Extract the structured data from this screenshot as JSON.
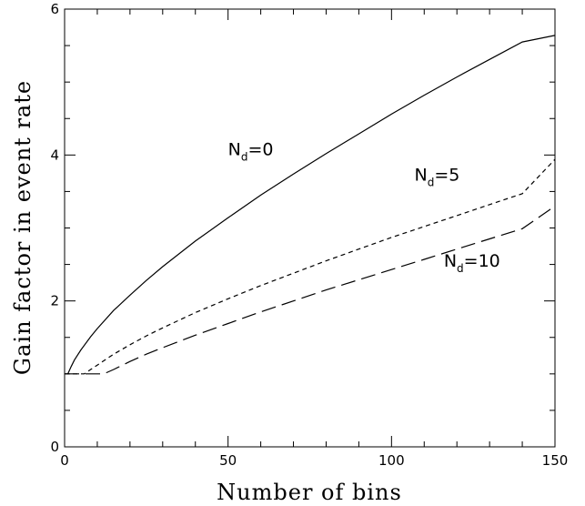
{
  "chart_data": {
    "type": "line",
    "xlabel": "Number of bins",
    "ylabel": "Gain factor in event rate",
    "xlim": [
      0,
      150
    ],
    "ylim": [
      0,
      6
    ],
    "x_ticks": [
      "0",
      "50",
      "100",
      "150"
    ],
    "y_ticks": [
      "0",
      "2",
      "4",
      "6"
    ],
    "grid": false,
    "series": [
      {
        "name": "N_d=0",
        "label_main": "N",
        "label_sub": "d",
        "label_rest": "=0",
        "dash": "solid",
        "x": [
          1,
          2,
          3,
          5,
          8,
          10,
          15,
          20,
          25,
          30,
          40,
          50,
          60,
          70,
          80,
          90,
          100,
          110,
          120,
          130,
          140,
          150
        ],
        "y": [
          1.0,
          1.1,
          1.19,
          1.33,
          1.51,
          1.62,
          1.87,
          2.08,
          2.28,
          2.47,
          2.82,
          3.14,
          3.45,
          3.74,
          4.02,
          4.29,
          4.56,
          4.82,
          5.07,
          5.31,
          5.55,
          5.64
        ]
      },
      {
        "name": "N_d=5",
        "label_main": "N",
        "label_sub": "d",
        "label_rest": "=5",
        "dash": "short",
        "x": [
          0,
          6,
          8,
          10,
          15,
          20,
          25,
          30,
          40,
          50,
          60,
          70,
          80,
          90,
          100,
          110,
          120,
          130,
          140,
          150
        ],
        "y": [
          1.0,
          1.0,
          1.06,
          1.12,
          1.27,
          1.4,
          1.52,
          1.63,
          1.84,
          2.03,
          2.21,
          2.38,
          2.55,
          2.71,
          2.87,
          3.02,
          3.17,
          3.32,
          3.47,
          3.94
        ]
      },
      {
        "name": "N_d=10",
        "label_main": "N",
        "label_sub": "d",
        "label_rest": "=10",
        "dash": "long",
        "x": [
          0,
          12,
          15,
          20,
          25,
          30,
          40,
          50,
          60,
          70,
          80,
          90,
          100,
          110,
          120,
          130,
          140,
          150
        ],
        "y": [
          1.0,
          1.0,
          1.06,
          1.17,
          1.27,
          1.36,
          1.53,
          1.69,
          1.85,
          2.0,
          2.15,
          2.29,
          2.43,
          2.57,
          2.71,
          2.85,
          2.99,
          3.3
        ]
      }
    ]
  }
}
